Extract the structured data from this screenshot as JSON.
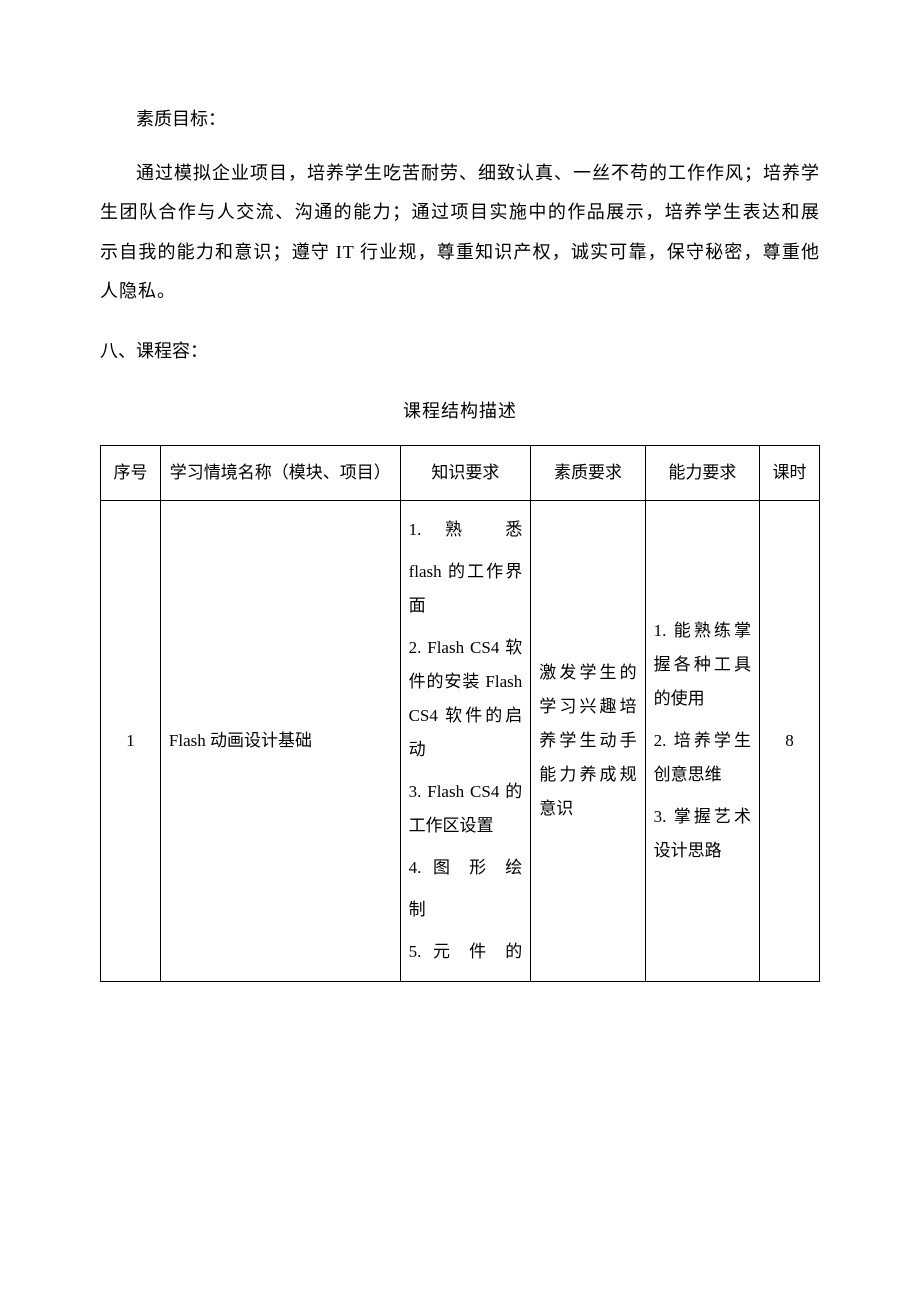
{
  "heading1": "素质目标：",
  "paragraph1": "通过模拟企业项目，培养学生吃苦耐劳、细致认真、一丝不苟的工作作风；培养学生团队合作与人交流、沟通的能力；通过项目实施中的作品展示，培养学生表达和展示自我的能力和意识；遵守 IT 行业规，尊重知识产权，诚实可靠，保守秘密，尊重他人隐私。",
  "section8": "八、课程容：",
  "tableTitle": "课程结构描述",
  "headers": {
    "seq": "序号",
    "name": "学习情境名称（模块、项目）",
    "knowledge": "知识要求",
    "quality": "素质要求",
    "ability": "能力要求",
    "hours": "课时"
  },
  "row1": {
    "seq": "1",
    "name": "Flash 动画设计基础",
    "knowledge": {
      "k1a": "1.  熟  悉",
      "k1b": "flash 的工作界面",
      "k2": "2. Flash CS4 软件的安装 Flash CS4 软件的启动",
      "k3": "3. Flash CS4 的工作区设置",
      "k4a": "4. 图 形 绘",
      "k4b": "制",
      "k5a": "5. 元 件 的"
    },
    "quality": "激发学生的学习兴趣培养学生动手能力养成规意识",
    "ability": {
      "a1": "1.  能熟练掌握各种工具的使用",
      "a2": "2.  培养学生创意思维",
      "a3": "3. 掌握艺术设计思路"
    },
    "hours": "8"
  },
  "colors": {
    "text": "#000000",
    "background": "#ffffff",
    "border": "#000000"
  }
}
